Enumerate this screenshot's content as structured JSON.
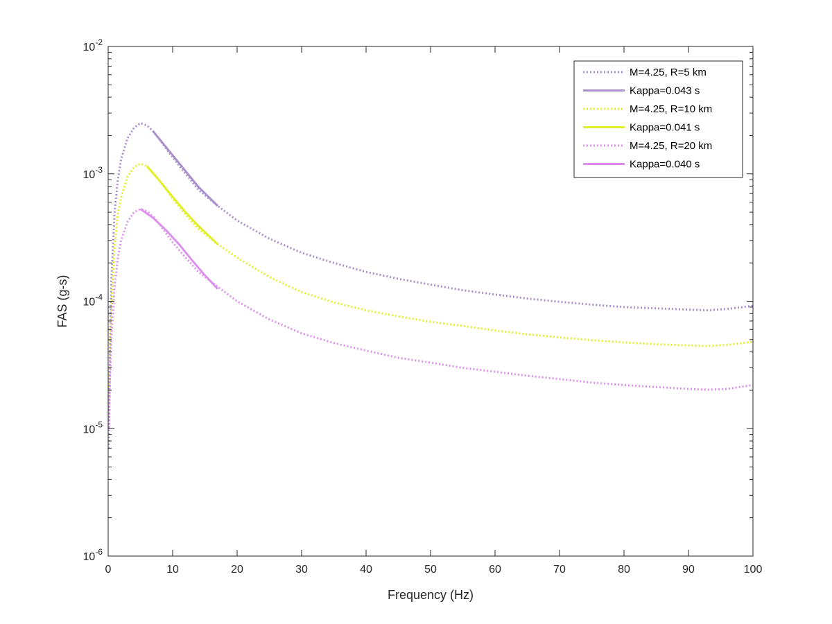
{
  "chart_data": {
    "type": "line",
    "xlabel": "Frequency (Hz)",
    "ylabel": "FAS (g-s)",
    "xlim": [
      0,
      100
    ],
    "ylim": [
      1e-06,
      0.01
    ],
    "yscale": "log",
    "xticks": [
      0,
      10,
      20,
      30,
      40,
      50,
      60,
      70,
      80,
      90,
      100
    ],
    "yticks": [
      {
        "value": 1e-06,
        "base": "10",
        "exp": "-6"
      },
      {
        "value": 1e-05,
        "base": "10",
        "exp": "-5"
      },
      {
        "value": 0.0001,
        "base": "10",
        "exp": "-4"
      },
      {
        "value": 0.001,
        "base": "10",
        "exp": "-3"
      },
      {
        "value": 0.01,
        "base": "10",
        "exp": "-2"
      }
    ],
    "grid": false,
    "legend_position": "top-right",
    "series": [
      {
        "name": "M=4.25, R=5 km",
        "color": "#a98fcb",
        "style": "dotted",
        "x": [
          0.1,
          0.3,
          0.5,
          1,
          1.5,
          2,
          3,
          4,
          5,
          6,
          7,
          8,
          10,
          12,
          14,
          17,
          20,
          25,
          30,
          35,
          40,
          45,
          50,
          55,
          60,
          65,
          70,
          75,
          80,
          85,
          90,
          93,
          96,
          100
        ],
        "y": [
          7e-06,
          5e-05,
          0.00015,
          0.0005,
          0.0009,
          0.0013,
          0.0019,
          0.0023,
          0.0025,
          0.0024,
          0.00215,
          0.00185,
          0.00135,
          0.001,
          0.00075,
          0.00056,
          0.00043,
          0.00031,
          0.00024,
          0.0002,
          0.00017,
          0.00015,
          0.000135,
          0.000122,
          0.000113,
          0.000105,
          9.9e-05,
          9.4e-05,
          9e-05,
          8.8e-05,
          8.6e-05,
          8.5e-05,
          8.7e-05,
          9.2e-05
        ]
      },
      {
        "name": "Kappa=0.043 s",
        "color": "#a98fcb",
        "style": "solid",
        "x": [
          7,
          10,
          12,
          14,
          17
        ],
        "y": [
          0.00215,
          0.0014,
          0.00105,
          0.00079,
          0.00056
        ]
      },
      {
        "name": "M=4.25, R=10 km",
        "color": "#e1ef2c",
        "style": "dotted",
        "x": [
          0.1,
          0.3,
          0.5,
          1,
          1.5,
          2,
          3,
          4,
          5,
          6,
          7,
          8,
          10,
          12,
          14,
          17,
          20,
          25,
          30,
          35,
          40,
          45,
          50,
          55,
          60,
          65,
          70,
          75,
          80,
          85,
          90,
          93,
          96,
          100
        ],
        "y": [
          1.2e-05,
          4e-05,
          9e-05,
          0.00028,
          0.00048,
          0.00065,
          0.00095,
          0.00113,
          0.0012,
          0.00115,
          0.00102,
          0.00088,
          0.00064,
          0.00048,
          0.00037,
          0.00028,
          0.00022,
          0.000155,
          0.000118,
          9.8e-05,
          8.5e-05,
          7.6e-05,
          6.9e-05,
          6.4e-05,
          5.9e-05,
          5.5e-05,
          5.2e-05,
          4.95e-05,
          4.75e-05,
          4.6e-05,
          4.5e-05,
          4.45e-05,
          4.55e-05,
          4.8e-05
        ]
      },
      {
        "name": "Kappa=0.041 s",
        "color": "#e1ef2c",
        "style": "solid",
        "x": [
          6,
          8,
          10,
          12,
          14,
          17
        ],
        "y": [
          0.00115,
          0.00088,
          0.00066,
          0.0005,
          0.00039,
          0.00028
        ]
      },
      {
        "name": "M=4.25, R=20 km",
        "color": "#dc91ec",
        "style": "dotted",
        "x": [
          0.1,
          0.3,
          0.5,
          1,
          1.5,
          2,
          3,
          4,
          5,
          6,
          7,
          8,
          10,
          12,
          14,
          17,
          20,
          25,
          30,
          35,
          40,
          45,
          50,
          55,
          60,
          65,
          70,
          75,
          80,
          85,
          90,
          93,
          96,
          100
        ],
        "y": [
          1e-05,
          2.5e-05,
          5e-05,
          0.00013,
          0.00022,
          0.0003,
          0.00042,
          0.0005,
          0.00053,
          0.00051,
          0.00046,
          0.0004,
          0.00029,
          0.00022,
          0.00017,
          0.00013,
          0.0001,
          7.2e-05,
          5.6e-05,
          4.7e-05,
          4.1e-05,
          3.6e-05,
          3.3e-05,
          3e-05,
          2.8e-05,
          2.6e-05,
          2.45e-05,
          2.3e-05,
          2.2e-05,
          2.12e-05,
          2.05e-05,
          2.02e-05,
          2.05e-05,
          2.2e-05
        ]
      },
      {
        "name": "Kappa=0.040 s",
        "color": "#dc91ec",
        "style": "solid",
        "x": [
          5,
          7,
          9,
          11,
          13,
          15,
          17
        ],
        "y": [
          0.00053,
          0.00045,
          0.00036,
          0.00028,
          0.00021,
          0.00016,
          0.000125
        ]
      }
    ]
  }
}
